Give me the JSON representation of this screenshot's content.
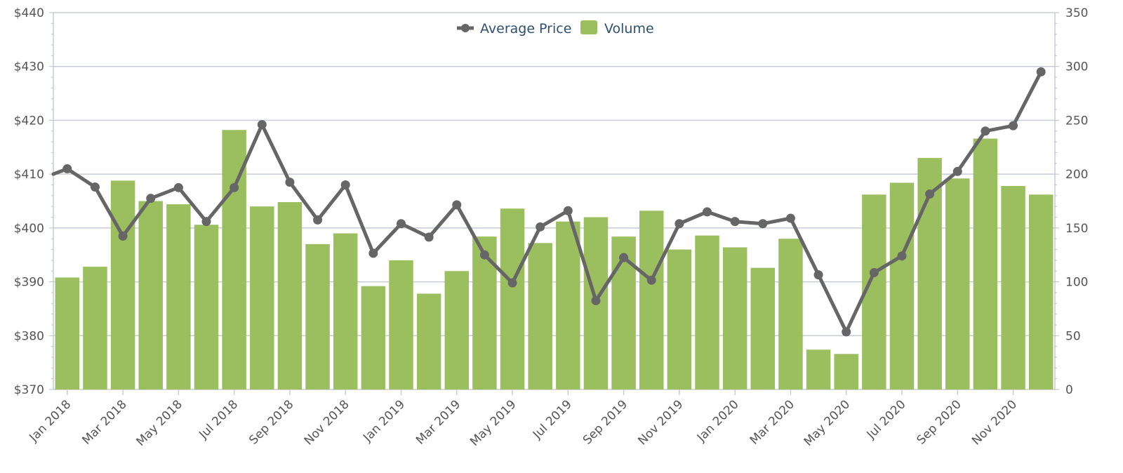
{
  "chart_data": {
    "type": "bar+line",
    "title": "",
    "legend": {
      "placement": "top-center",
      "entries": [
        {
          "label": "Average Price",
          "marker": "line-dot",
          "color": "#666666"
        },
        {
          "label": "Volume",
          "marker": "square",
          "color": "#9bbf5f"
        }
      ]
    },
    "x": [
      "Jan 2018",
      "Feb 2018",
      "Mar 2018",
      "Apr 2018",
      "May 2018",
      "Jun 2018",
      "Jul 2018",
      "Aug 2018",
      "Sep 2018",
      "Oct 2018",
      "Nov 2018",
      "Dec 2018",
      "Jan 2019",
      "Feb 2019",
      "Mar 2019",
      "Apr 2019",
      "May 2019",
      "Jun 2019",
      "Jul 2019",
      "Aug 2019",
      "Sep 2019",
      "Oct 2019",
      "Nov 2019",
      "Dec 2019",
      "Jan 2020",
      "Feb 2020",
      "Mar 2020",
      "Apr 2020",
      "May 2020",
      "Jun 2020",
      "Jul 2020",
      "Aug 2020",
      "Sep 2020",
      "Oct 2020",
      "Nov 2020",
      "Dec 2020"
    ],
    "x_tick_labels": [
      "Jan 2018",
      "Mar 2018",
      "May 2018",
      "Jul 2018",
      "Sep 2018",
      "Nov 2018",
      "Jan 2019",
      "Mar 2019",
      "May 2019",
      "Jul 2019",
      "Sep 2019",
      "Nov 2019",
      "Jan 2020",
      "Mar 2020",
      "May 2020",
      "Jul 2020",
      "Sep 2020",
      "Nov 2020"
    ],
    "y_left": {
      "range": [
        370,
        440
      ],
      "ticks": [
        "$440",
        "$430",
        "$420",
        "$410",
        "$400",
        "$390",
        "$380",
        "$370"
      ],
      "tick_values": [
        440,
        430,
        420,
        410,
        400,
        390,
        380,
        370
      ]
    },
    "y_right": {
      "range": [
        0,
        350
      ],
      "ticks": [
        "350",
        "300",
        "250",
        "200",
        "150",
        "100",
        "50",
        "0"
      ],
      "tick_values": [
        350,
        300,
        250,
        200,
        150,
        100,
        50,
        0
      ]
    },
    "grid": true,
    "series": [
      {
        "name": "Volume",
        "type": "bar",
        "axis": "right",
        "color": "#9bbf5f",
        "values": [
          104,
          114,
          194,
          175,
          172,
          153,
          241,
          170,
          174,
          135,
          145,
          96,
          120,
          89,
          110,
          142,
          168,
          136,
          156,
          160,
          142,
          166,
          130,
          143,
          132,
          113,
          140,
          37,
          33,
          181,
          192,
          215,
          196,
          233,
          189,
          181
        ]
      },
      {
        "name": "Average Price",
        "type": "line",
        "axis": "left",
        "color": "#666666",
        "start_value": 410,
        "values": [
          411,
          407.6,
          398.5,
          405.5,
          407.5,
          401.2,
          407.5,
          419.2,
          408.5,
          401.5,
          408,
          395.3,
          400.8,
          398.3,
          404.3,
          395,
          389.8,
          400.2,
          403.2,
          386.5,
          394.5,
          390.3,
          400.8,
          403,
          401.2,
          400.8,
          401.8,
          391.3,
          380.7,
          391.7,
          394.8,
          406.3,
          410.5,
          418,
          419,
          429
        ]
      }
    ]
  }
}
